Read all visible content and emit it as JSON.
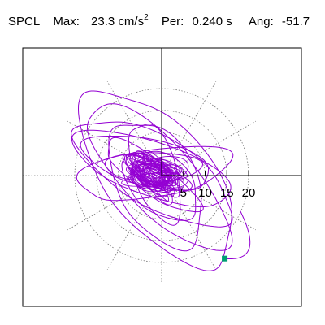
{
  "header": {
    "component_label": "SPCL",
    "max_label": "Max:",
    "max_value": "23.3 cm/s",
    "max_unit_exp": "2",
    "period_label": "Per:",
    "period_value": "0.240 s",
    "angle_label": "Ang:",
    "angle_value": "-51.7"
  },
  "chart_data": {
    "type": "scatter",
    "title": "",
    "xlabel": "",
    "ylabel": "",
    "radial_ticks": [
      5,
      10,
      15,
      20
    ],
    "radial_tick_labels": [
      "5",
      "10",
      "15",
      "20"
    ],
    "radial_max": 25,
    "angular_grid_step_deg": 30,
    "grid": true,
    "line_color": "#9400d3",
    "marker_color": "#009e73",
    "max_magnitude": 23.3,
    "max_angle_deg": -51.7,
    "end_point": [
      14.5,
      -19.1
    ],
    "orbit_envelopes": [
      {
        "cx": -0.5,
        "cy": -0.5,
        "a": 24.5,
        "b": 11.0,
        "angle_deg": -51.7
      },
      {
        "cx": -1.0,
        "cy": 0.0,
        "a": 22.0,
        "b": 8.0,
        "angle_deg": -45
      },
      {
        "cx": -1.5,
        "cy": 1.0,
        "a": 20.5,
        "b": 7.5,
        "angle_deg": -30
      },
      {
        "cx": -2.0,
        "cy": 1.5,
        "a": 19.0,
        "b": 6.5,
        "angle_deg": -20
      },
      {
        "cx": -1.0,
        "cy": -1.5,
        "a": 16.0,
        "b": 8.5,
        "angle_deg": -60
      },
      {
        "cx": -3.0,
        "cy": 3.0,
        "a": 15.0,
        "b": 5.5,
        "angle_deg": -15
      },
      {
        "cx": -2.0,
        "cy": 0.5,
        "a": 17.5,
        "b": 6.0,
        "angle_deg": 10
      },
      {
        "cx": -1.5,
        "cy": 1.0,
        "a": 12.0,
        "b": 5.0,
        "angle_deg": -70
      },
      {
        "cx": -2.5,
        "cy": 0.0,
        "a": 13.0,
        "b": 4.0,
        "angle_deg": -35
      },
      {
        "cx": 0.0,
        "cy": -2.0,
        "a": 10.0,
        "b": 6.0,
        "angle_deg": -40
      },
      {
        "cx": -2.0,
        "cy": 2.0,
        "a": 11.0,
        "b": 3.5,
        "angle_deg": 0
      },
      {
        "cx": -1.0,
        "cy": 0.0,
        "a": 8.0,
        "b": 3.0,
        "angle_deg": -25
      }
    ]
  }
}
